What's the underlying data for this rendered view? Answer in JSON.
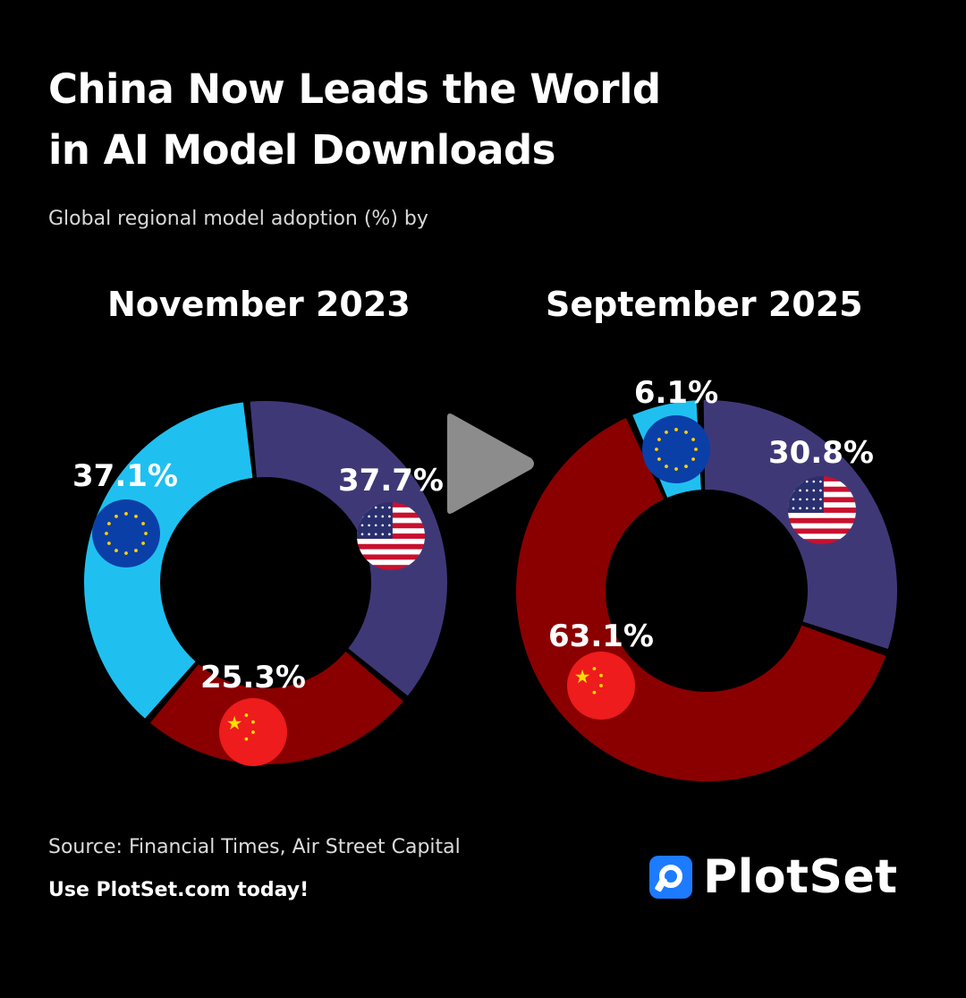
{
  "title": {
    "line1": "China Now Leads the World",
    "line2": "in AI Model Downloads"
  },
  "subtitle": "Global regional model adoption (%) by",
  "source": "Source: Financial Times, Air Street Capital",
  "cta": "Use PlotSet.com today!",
  "brand": {
    "name": "PlotSet",
    "color": "#1d7bff"
  },
  "play_button": {
    "icon": "play-icon"
  },
  "colors": {
    "Europe": "#1fc0f0",
    "United States": "#3f3877",
    "China": "#8a0000"
  },
  "chart_data": [
    {
      "type": "pie",
      "variant": "donut",
      "title": "November 2023",
      "categories": [
        "United States",
        "China",
        "Europe"
      ],
      "values": [
        37.7,
        25.3,
        37.1
      ],
      "labels": [
        "37.7%",
        "25.3%",
        "37.1%"
      ],
      "icons": [
        "us-flag-icon",
        "china-flag-icon",
        "eu-flag-icon"
      ]
    },
    {
      "type": "pie",
      "variant": "donut",
      "title": "September 2025",
      "categories": [
        "United States",
        "China",
        "Europe"
      ],
      "values": [
        30.8,
        63.1,
        6.1
      ],
      "labels": [
        "30.8%",
        "63.1%",
        "6.1%"
      ],
      "icons": [
        "us-flag-icon",
        "china-flag-icon",
        "eu-flag-icon"
      ]
    }
  ]
}
